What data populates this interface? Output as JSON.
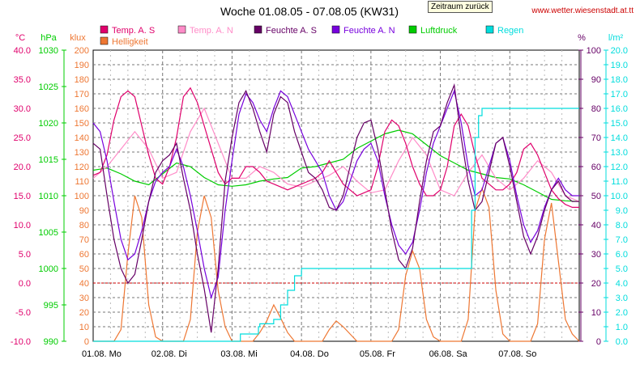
{
  "header": {
    "title": "Woche 01.08.05 - 07.08.05 (KW31)",
    "back_button": "Zeitraum zurück",
    "website": "www.wetter.wiesenstadt.at.tt"
  },
  "colors": {
    "temp_s": "#e0006c",
    "temp_n": "#ff8cc8",
    "feuchte_s": "#660066",
    "feuchte_n": "#7700dd",
    "luftdruck": "#00cc00",
    "regen": "#00dddd",
    "helligkeit": "#ee7733",
    "zero_line": "#cc0000",
    "grid": "#777777"
  },
  "chart_data": {
    "type": "line",
    "title": "Woche 01.08.05 - 07.08.05 (KW31)",
    "grid": true,
    "legend_placement": "top",
    "x_labels": [
      "01.08.  Mo",
      "02.08.  Di",
      "03.08.  Mi",
      "04.08.  Do",
      "05.08.  Fr",
      "06.08.  Sa",
      "07.08.  So"
    ],
    "xlim": [
      0,
      7
    ],
    "axes": [
      {
        "unit": "°C",
        "ticks": [
          "40.0",
          "35.0",
          "30.0",
          "25.0",
          "20.0",
          "15.0",
          "10.0",
          "5.0",
          "0.0",
          "-5.0",
          "-10.0"
        ],
        "ylim": [
          -10,
          40
        ],
        "color": "#e0006c"
      },
      {
        "unit": "hPa",
        "ticks": [
          "1030",
          "1025",
          "1020",
          "1015",
          "1010",
          "1005",
          "1000",
          "995",
          "990"
        ],
        "ylim": [
          990,
          1030
        ],
        "color": "#00cc00"
      },
      {
        "unit": "klux",
        "ticks": [
          "200",
          "190",
          "180",
          "170",
          "160",
          "150",
          "140",
          "130",
          "120",
          "110",
          "100",
          "90",
          "80",
          "70",
          "60",
          "50",
          "40",
          "30",
          "20",
          "10",
          "0"
        ],
        "ylim": [
          0,
          200
        ],
        "color": "#ee7733"
      },
      {
        "unit": "%",
        "ticks": [
          "100",
          "90",
          "80",
          "70",
          "60",
          "50",
          "40",
          "30",
          "20",
          "10",
          "0"
        ],
        "ylim": [
          0,
          100
        ],
        "color": "#660066"
      },
      {
        "unit": "l/m²",
        "ticks": [
          "20.0",
          "19.0",
          "18.0",
          "17.0",
          "16.0",
          "15.0",
          "14.0",
          "13.0",
          "12.0",
          "11.0",
          "10.0",
          "9.0",
          "8.0",
          "7.0",
          "6.0",
          "5.0",
          "4.0",
          "3.0",
          "2.0",
          "1.0",
          "0.0"
        ],
        "ylim": [
          0,
          20
        ],
        "color": "#00dddd"
      }
    ],
    "series": [
      {
        "name": "Temp. A. S",
        "axis": 0,
        "x": [
          0,
          0.1,
          0.2,
          0.3,
          0.4,
          0.5,
          0.6,
          0.7,
          0.8,
          0.9,
          1.0,
          1.1,
          1.2,
          1.3,
          1.4,
          1.5,
          1.6,
          1.7,
          1.8,
          1.9,
          2.0,
          2.1,
          2.2,
          2.3,
          2.4,
          2.5,
          2.6,
          2.7,
          2.8,
          2.9,
          3.0,
          3.1,
          3.2,
          3.3,
          3.4,
          3.5,
          3.6,
          3.7,
          3.8,
          3.9,
          4.0,
          4.1,
          4.2,
          4.3,
          4.4,
          4.5,
          4.6,
          4.7,
          4.8,
          4.9,
          5.0,
          5.1,
          5.2,
          5.3,
          5.4,
          5.5,
          5.6,
          5.7,
          5.8,
          5.9,
          6.0,
          6.1,
          6.2,
          6.3,
          6.4,
          6.5,
          6.6,
          6.7,
          6.8,
          6.9,
          7.0
        ],
        "y": [
          18.5,
          19,
          22,
          28,
          32,
          33,
          32,
          27,
          22,
          18,
          17,
          20,
          25,
          32,
          33.5,
          31,
          27,
          23,
          19,
          17,
          18,
          18,
          20,
          20,
          19,
          17.5,
          17,
          16.5,
          16,
          16.5,
          17,
          17.5,
          18,
          19,
          21,
          19,
          17,
          16,
          15,
          15.5,
          16,
          20,
          26,
          28,
          27,
          24,
          20,
          17,
          15,
          15,
          16,
          20,
          27,
          29,
          27,
          22,
          18,
          17,
          16,
          16,
          17,
          19,
          23,
          24,
          22,
          19,
          16,
          14.5,
          13.5,
          13,
          13
        ]
      },
      {
        "name": "Temp. A. N",
        "axis": 0,
        "x": [
          0,
          0.2,
          0.4,
          0.6,
          0.8,
          1.0,
          1.2,
          1.4,
          1.6,
          1.8,
          2.0,
          2.2,
          2.4,
          2.6,
          2.8,
          3.0,
          3.2,
          3.4,
          3.6,
          3.8,
          4.0,
          4.2,
          4.4,
          4.6,
          4.8,
          5.0,
          5.2,
          5.4,
          5.6,
          5.8,
          6.0,
          6.2,
          6.4,
          6.6,
          6.8,
          7.0
        ],
        "y": [
          18,
          20,
          23,
          26,
          23,
          18,
          19,
          26,
          30,
          24,
          18,
          18,
          20,
          19,
          17,
          16.5,
          17.5,
          18.5,
          20,
          17.5,
          15.5,
          16,
          21,
          25,
          22,
          16,
          15,
          19,
          22,
          18,
          16,
          18,
          21,
          19,
          15,
          14
        ]
      },
      {
        "name": "Feuchte A. S",
        "axis": 3,
        "x": [
          0,
          0.1,
          0.2,
          0.3,
          0.4,
          0.5,
          0.6,
          0.7,
          0.8,
          0.9,
          1.0,
          1.1,
          1.2,
          1.3,
          1.4,
          1.5,
          1.6,
          1.7,
          1.8,
          1.9,
          2.0,
          2.1,
          2.2,
          2.3,
          2.4,
          2.5,
          2.6,
          2.7,
          2.8,
          2.9,
          3.0,
          3.1,
          3.2,
          3.3,
          3.4,
          3.5,
          3.6,
          3.7,
          3.8,
          3.9,
          4.0,
          4.1,
          4.2,
          4.3,
          4.4,
          4.5,
          4.6,
          4.7,
          4.8,
          4.9,
          5.0,
          5.1,
          5.2,
          5.3,
          5.4,
          5.5,
          5.6,
          5.7,
          5.8,
          5.9,
          6.0,
          6.1,
          6.2,
          6.3,
          6.4,
          6.5,
          6.6,
          6.7,
          6.8,
          6.9,
          7.0
        ],
        "y": [
          68,
          66,
          50,
          35,
          25,
          20,
          23,
          35,
          48,
          58,
          62,
          64,
          68,
          56,
          45,
          30,
          18,
          3,
          25,
          55,
          70,
          82,
          86,
          80,
          72,
          65,
          78,
          84,
          82,
          72,
          65,
          58,
          56,
          52,
          46,
          45,
          50,
          60,
          70,
          75,
          76,
          66,
          52,
          38,
          28,
          25,
          32,
          48,
          62,
          72,
          74,
          82,
          88,
          70,
          55,
          45,
          48,
          58,
          68,
          70,
          60,
          48,
          36,
          30,
          36,
          45,
          52,
          55,
          50,
          48,
          48
        ]
      },
      {
        "name": "Feuchte A. N",
        "axis": 3,
        "x": [
          0,
          0.1,
          0.2,
          0.3,
          0.4,
          0.5,
          0.6,
          0.7,
          0.8,
          0.9,
          1.0,
          1.1,
          1.2,
          1.3,
          1.4,
          1.5,
          1.6,
          1.7,
          1.8,
          1.9,
          2.0,
          2.1,
          2.2,
          2.3,
          2.4,
          2.5,
          2.6,
          2.7,
          2.8,
          2.9,
          3.0,
          3.1,
          3.2,
          3.3,
          3.4,
          3.5,
          3.6,
          3.7,
          3.8,
          3.9,
          4.0,
          4.1,
          4.2,
          4.3,
          4.4,
          4.5,
          4.6,
          4.7,
          4.8,
          4.9,
          5.0,
          5.1,
          5.2,
          5.3,
          5.4,
          5.5,
          5.6,
          5.7,
          5.8,
          5.9,
          6.0,
          6.1,
          6.2,
          6.3,
          6.4,
          6.5,
          6.6,
          6.7,
          6.8,
          6.9,
          7.0
        ],
        "y": [
          75,
          72,
          62,
          48,
          35,
          28,
          30,
          38,
          48,
          55,
          58,
          60,
          66,
          60,
          50,
          38,
          25,
          15,
          22,
          45,
          62,
          78,
          85,
          82,
          76,
          72,
          80,
          86,
          84,
          78,
          72,
          66,
          62,
          58,
          50,
          45,
          48,
          55,
          62,
          66,
          68,
          62,
          50,
          40,
          33,
          30,
          34,
          45,
          58,
          68,
          74,
          80,
          86,
          75,
          60,
          50,
          52,
          60,
          68,
          70,
          62,
          50,
          40,
          34,
          38,
          46,
          52,
          56,
          52,
          50,
          50
        ]
      },
      {
        "name": "Luftdruck",
        "axis": 1,
        "x": [
          0,
          0.2,
          0.4,
          0.6,
          0.8,
          1.0,
          1.2,
          1.4,
          1.6,
          1.8,
          2.0,
          2.2,
          2.4,
          2.6,
          2.8,
          3.0,
          3.2,
          3.4,
          3.6,
          3.8,
          4.0,
          4.2,
          4.4,
          4.6,
          4.8,
          5.0,
          5.2,
          5.4,
          5.6,
          5.8,
          6.0,
          6.2,
          6.4,
          6.6,
          6.8,
          7.0
        ],
        "y": [
          1013.5,
          1013.8,
          1013,
          1012,
          1011.5,
          1013,
          1014.5,
          1014,
          1012.5,
          1011.5,
          1011.3,
          1011.5,
          1012,
          1012.3,
          1012.5,
          1013.8,
          1014,
          1014.5,
          1015,
          1016.5,
          1017.5,
          1018.5,
          1019,
          1018.5,
          1017,
          1015.5,
          1014.5,
          1013.5,
          1013,
          1012.5,
          1012.3,
          1011.5,
          1010.5,
          1009.5,
          1009.3,
          1009.2
        ]
      },
      {
        "name": "Regen",
        "axis": 4,
        "x": [
          0,
          2.1,
          2.12,
          2.38,
          2.4,
          2.6,
          2.7,
          2.8,
          2.9,
          3.0,
          4.0,
          5.0,
          5.4,
          5.45,
          5.5,
          5.55,
          5.6,
          7.0
        ],
        "y": [
          0,
          0,
          0.5,
          1,
          1.2,
          1.5,
          2.5,
          3.5,
          4.5,
          5,
          5,
          5,
          5,
          9,
          14,
          15.5,
          16,
          16
        ]
      },
      {
        "name": "Helligkeit",
        "axis": 2,
        "x": [
          0,
          0.1,
          0.2,
          0.3,
          0.4,
          0.5,
          0.6,
          0.7,
          0.8,
          0.9,
          1.0,
          1.1,
          1.2,
          1.3,
          1.4,
          1.5,
          1.6,
          1.7,
          1.8,
          1.9,
          2.0,
          2.1,
          2.2,
          2.3,
          2.4,
          2.5,
          2.6,
          2.7,
          2.8,
          2.9,
          3.0,
          3.1,
          3.2,
          3.3,
          3.4,
          3.5,
          3.6,
          3.7,
          3.8,
          3.9,
          4.0,
          4.1,
          4.2,
          4.3,
          4.4,
          4.5,
          4.6,
          4.7,
          4.8,
          4.9,
          5.0,
          5.1,
          5.2,
          5.3,
          5.4,
          5.5,
          5.6,
          5.7,
          5.8,
          5.9,
          6.0,
          6.1,
          6.2,
          6.3,
          6.4,
          6.5,
          6.6,
          6.7,
          6.8,
          6.9,
          7.0
        ],
        "y": [
          0,
          0,
          0,
          0,
          8,
          60,
          100,
          85,
          25,
          3,
          0,
          0,
          0,
          0,
          15,
          75,
          100,
          85,
          35,
          10,
          0,
          0,
          0,
          0,
          6,
          14,
          25,
          16,
          6,
          0,
          0,
          0,
          0,
          0,
          8,
          14,
          10,
          5,
          0,
          0,
          0,
          0,
          0,
          0,
          8,
          45,
          62,
          50,
          15,
          3,
          0,
          0,
          0,
          0,
          15,
          90,
          105,
          92,
          35,
          5,
          0,
          0,
          0,
          0,
          12,
          70,
          95,
          55,
          15,
          5,
          0
        ]
      }
    ]
  }
}
